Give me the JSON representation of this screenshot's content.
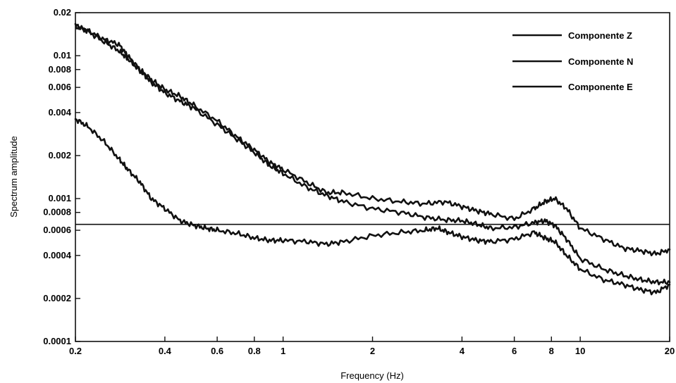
{
  "chart_data": {
    "type": "line",
    "xscale": "log",
    "yscale": "log",
    "xlabel": "Frequency (Hz)",
    "ylabel": "Spectrum amplitude",
    "xlim": [
      0.2,
      20
    ],
    "ylim": [
      0.0001,
      0.02
    ],
    "x_ticks": [
      {
        "value": 0.2,
        "label": "0.2"
      },
      {
        "value": 0.4,
        "label": "0.4"
      },
      {
        "value": 0.6,
        "label": "0.6"
      },
      {
        "value": 0.8,
        "label": "0.8"
      },
      {
        "value": 1,
        "label": "1"
      },
      {
        "value": 2,
        "label": "2"
      },
      {
        "value": 4,
        "label": "4"
      },
      {
        "value": 6,
        "label": "6"
      },
      {
        "value": 8,
        "label": "8"
      },
      {
        "value": 10,
        "label": "10"
      },
      {
        "value": 20,
        "label": "20"
      }
    ],
    "y_ticks": [
      {
        "value": 0.0001,
        "label": "0.0001"
      },
      {
        "value": 0.0002,
        "label": "0.0002"
      },
      {
        "value": 0.0004,
        "label": "0.0004"
      },
      {
        "value": 0.0006,
        "label": "0.0006"
      },
      {
        "value": 0.0008,
        "label": "0.0008"
      },
      {
        "value": 0.001,
        "label": "0.001"
      },
      {
        "value": 0.002,
        "label": "0.002"
      },
      {
        "value": 0.004,
        "label": "0.004"
      },
      {
        "value": 0.006,
        "label": "0.006"
      },
      {
        "value": 0.008,
        "label": "0.008"
      },
      {
        "value": 0.01,
        "label": "0.01"
      },
      {
        "value": 0.02,
        "label": "0.02"
      }
    ],
    "reference_line_y": 0.00066,
    "grid": false,
    "legend_position": "top-right",
    "series": [
      {
        "name": "Componente Z",
        "x": [
          0.2,
          0.22,
          0.25,
          0.28,
          0.3,
          0.33,
          0.36,
          0.4,
          0.45,
          0.5,
          0.55,
          0.6,
          0.7,
          0.8,
          0.9,
          1.0,
          1.2,
          1.4,
          1.6,
          2.0,
          2.5,
          3.0,
          3.3,
          3.6,
          4.0,
          4.5,
          5.0,
          6.0,
          7.0,
          7.6,
          8.2,
          9.0,
          10.0,
          12.0,
          14.0,
          16.0,
          18.0,
          20.0
        ],
        "values": [
          0.0036,
          0.0032,
          0.0025,
          0.0019,
          0.0016,
          0.0013,
          0.001,
          0.00085,
          0.0007,
          0.00065,
          0.00062,
          0.0006,
          0.00057,
          0.00053,
          0.00051,
          0.00051,
          0.0005,
          0.00048,
          0.0005,
          0.00055,
          0.00058,
          0.0006,
          0.00062,
          0.00058,
          0.00054,
          0.00051,
          0.0005,
          0.00052,
          0.00058,
          0.00053,
          0.0005,
          0.0004,
          0.00032,
          0.00027,
          0.00025,
          0.00023,
          0.00022,
          0.00025
        ]
      },
      {
        "name": "Componente N",
        "x": [
          0.2,
          0.22,
          0.25,
          0.28,
          0.3,
          0.33,
          0.36,
          0.4,
          0.45,
          0.5,
          0.6,
          0.7,
          0.8,
          0.9,
          1.0,
          1.2,
          1.4,
          1.6,
          2.0,
          2.5,
          3.0,
          3.5,
          4.0,
          4.5,
          5.0,
          6.0,
          7.0,
          7.6,
          8.2,
          9.0,
          10.0,
          12.0,
          14.0,
          16.0,
          18.0,
          20.0
        ],
        "values": [
          0.016,
          0.015,
          0.013,
          0.012,
          0.01,
          0.008,
          0.0068,
          0.0058,
          0.0052,
          0.0045,
          0.0035,
          0.0027,
          0.0022,
          0.0018,
          0.0016,
          0.0013,
          0.0011,
          0.0011,
          0.001,
          0.00095,
          0.00092,
          0.00095,
          0.00088,
          0.00082,
          0.00078,
          0.00072,
          0.00085,
          0.00095,
          0.001,
          0.00085,
          0.00062,
          0.00052,
          0.00045,
          0.00043,
          0.00041,
          0.00044
        ]
      },
      {
        "name": "Componente E",
        "x": [
          0.2,
          0.22,
          0.25,
          0.28,
          0.3,
          0.33,
          0.36,
          0.4,
          0.45,
          0.5,
          0.6,
          0.7,
          0.8,
          0.9,
          1.0,
          1.2,
          1.4,
          1.6,
          2.0,
          2.5,
          3.0,
          3.5,
          4.0,
          4.5,
          5.0,
          6.0,
          7.0,
          7.6,
          8.2,
          9.0,
          10.0,
          12.0,
          14.0,
          16.0,
          18.0,
          20.0
        ],
        "values": [
          0.0165,
          0.0148,
          0.0125,
          0.0108,
          0.0095,
          0.0078,
          0.0065,
          0.0055,
          0.0048,
          0.0043,
          0.0033,
          0.0026,
          0.0021,
          0.0017,
          0.0015,
          0.0012,
          0.00105,
          0.00095,
          0.00085,
          0.0008,
          0.00074,
          0.00071,
          0.0007,
          0.00066,
          0.00062,
          0.00063,
          0.00068,
          0.0007,
          0.00065,
          0.00052,
          0.00038,
          0.00032,
          0.00029,
          0.00027,
          0.00026,
          0.00026
        ]
      }
    ]
  }
}
